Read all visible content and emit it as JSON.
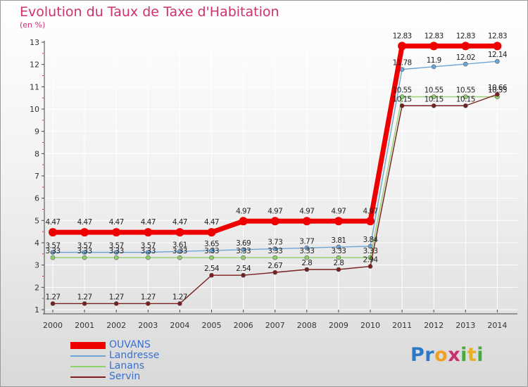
{
  "chart_data": {
    "type": "line",
    "title": "Evolution du Taux de Taxe d'Habitation",
    "ylabel": "(en %)",
    "xlabel": "",
    "ylim": [
      1,
      13
    ],
    "yticks": [
      1,
      2,
      3,
      4,
      5,
      6,
      7,
      8,
      9,
      10,
      11,
      12,
      13
    ],
    "x": [
      2000,
      2001,
      2002,
      2003,
      2004,
      2005,
      2006,
      2007,
      2008,
      2009,
      2010,
      2011,
      2012,
      2013,
      2014
    ],
    "series": [
      {
        "name": "OUVANS",
        "color": "#ee0000",
        "values": [
          4.47,
          4.47,
          4.47,
          4.47,
          4.47,
          4.47,
          4.97,
          4.97,
          4.97,
          4.97,
          4.97,
          12.83,
          12.83,
          12.83,
          12.83
        ],
        "labels": [
          "4.47",
          "4.47",
          "4.47",
          "4.47",
          "4.47",
          "4.47",
          "4.97",
          "4.97",
          "4.97",
          "4.97",
          "4.97",
          "12.83",
          "12.83",
          "12.83",
          "12.83"
        ]
      },
      {
        "name": "Landresse",
        "color": "#6fa5d6",
        "values": [
          3.57,
          3.57,
          3.57,
          3.57,
          3.61,
          3.65,
          3.69,
          3.73,
          3.77,
          3.81,
          3.84,
          11.78,
          11.9,
          12.02,
          12.14
        ],
        "labels": [
          "3.57",
          "3.57",
          "3.57",
          "3.57",
          "3.61",
          "3.65",
          "3.69",
          "3.73",
          "3.77",
          "3.81",
          "3.84",
          "11.78",
          "11.9",
          "12.02",
          "12.14"
        ]
      },
      {
        "name": "Lanans",
        "color": "#8fd16a",
        "values": [
          3.33,
          3.33,
          3.33,
          3.33,
          3.33,
          3.33,
          3.33,
          3.33,
          3.33,
          3.33,
          3.33,
          10.55,
          10.55,
          10.55,
          10.55
        ],
        "labels": [
          "3.33",
          "3.33",
          "3.33",
          "3.33",
          "3.33",
          "3.33",
          "3.33",
          "3.33",
          "3.33",
          "3.33",
          "3.33",
          "10.55",
          "10.55",
          "10.55",
          "10.55"
        ]
      },
      {
        "name": "Servin",
        "color": "#7a1e1e",
        "values": [
          1.27,
          1.27,
          1.27,
          1.27,
          1.27,
          2.54,
          2.54,
          2.67,
          2.8,
          2.8,
          2.94,
          10.15,
          10.15,
          10.15,
          10.66
        ],
        "labels": [
          "1.27",
          "1.27",
          "1.27",
          "1.27",
          "1.27",
          "2.54",
          "2.54",
          "2.67",
          "2.8",
          "2.8",
          "2.94",
          "10.15",
          "10.15",
          "10.15",
          "10.66"
        ]
      }
    ],
    "legend_position": "bottom-left"
  },
  "logo_text": "Proxiti"
}
